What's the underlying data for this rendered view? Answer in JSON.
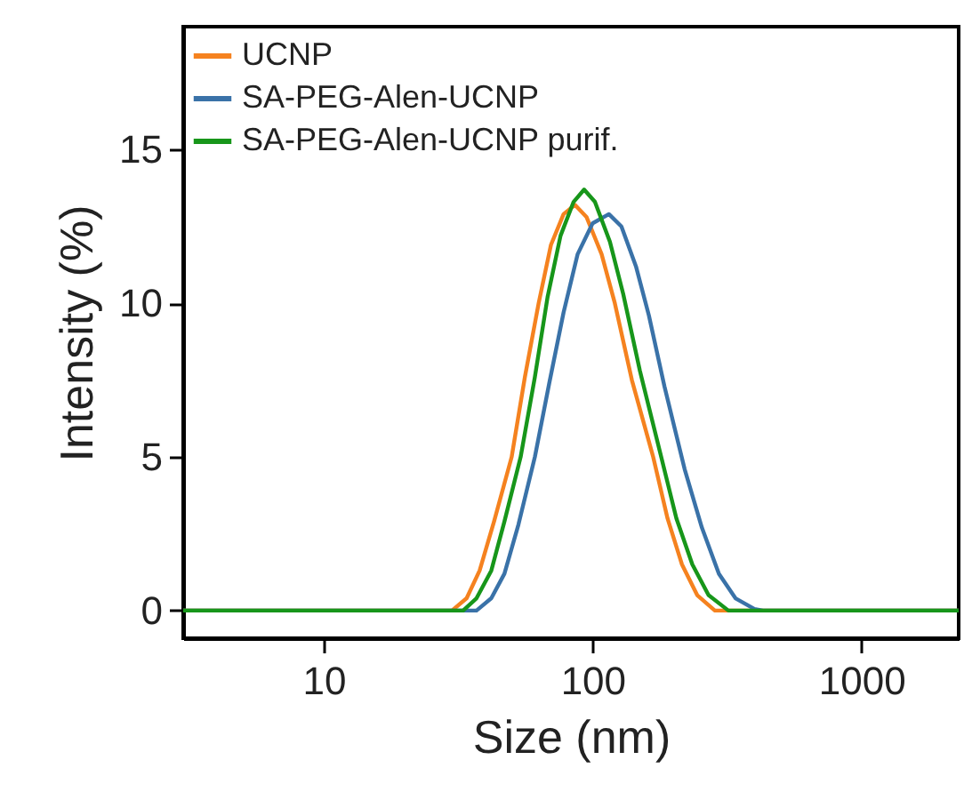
{
  "chart_data": {
    "type": "line",
    "xlabel": "Size (nm)",
    "ylabel": "Intensity (%)",
    "log": "x",
    "xlim": [
      3,
      2300
    ],
    "xticks": [
      10,
      100,
      1000
    ],
    "ylim": [
      -0.9,
      19
    ],
    "yticks": [
      0,
      5,
      10,
      15
    ],
    "grid": false,
    "legend": "top left",
    "line_style": "solid",
    "marker": "none",
    "series": [
      {
        "name": "UCNP",
        "color": "#f5821f",
        "x": [
          3,
          30,
          34,
          38,
          43,
          50,
          56,
          63,
          70,
          78,
          86,
          95,
          108,
          121,
          140,
          168,
          190,
          215,
          245,
          285,
          2300
        ],
        "values": [
          0,
          0,
          0.4,
          1.3,
          2.9,
          5.0,
          7.6,
          10.0,
          11.9,
          12.9,
          13.2,
          12.8,
          11.6,
          10.0,
          7.5,
          5.0,
          3.0,
          1.5,
          0.5,
          0,
          0
        ]
      },
      {
        "name": "SA-PEG-Alen-UCNP",
        "color": "#3a72a8",
        "x": [
          3,
          37,
          42,
          47,
          53,
          61,
          69,
          78,
          88,
          100,
          115,
          128,
          145,
          162,
          185,
          220,
          255,
          295,
          340,
          400,
          430,
          2300
        ],
        "values": [
          0,
          0,
          0.4,
          1.2,
          2.8,
          5.0,
          7.4,
          9.7,
          11.6,
          12.6,
          12.9,
          12.5,
          11.2,
          9.6,
          7.3,
          4.6,
          2.7,
          1.2,
          0.4,
          0.05,
          0,
          0
        ]
      },
      {
        "name": "SA-PEG-Alen-UCNP purif.",
        "color": "#17961a",
        "x": [
          3,
          33,
          37,
          42,
          47,
          54,
          61,
          68,
          76,
          85,
          93,
          102,
          116,
          130,
          150,
          180,
          205,
          235,
          270,
          320,
          2300
        ],
        "values": [
          0,
          0,
          0.4,
          1.3,
          2.9,
          5.0,
          7.6,
          10.2,
          12.2,
          13.3,
          13.7,
          13.3,
          12.0,
          10.3,
          7.8,
          5.0,
          3.0,
          1.5,
          0.5,
          0,
          0
        ]
      }
    ]
  }
}
